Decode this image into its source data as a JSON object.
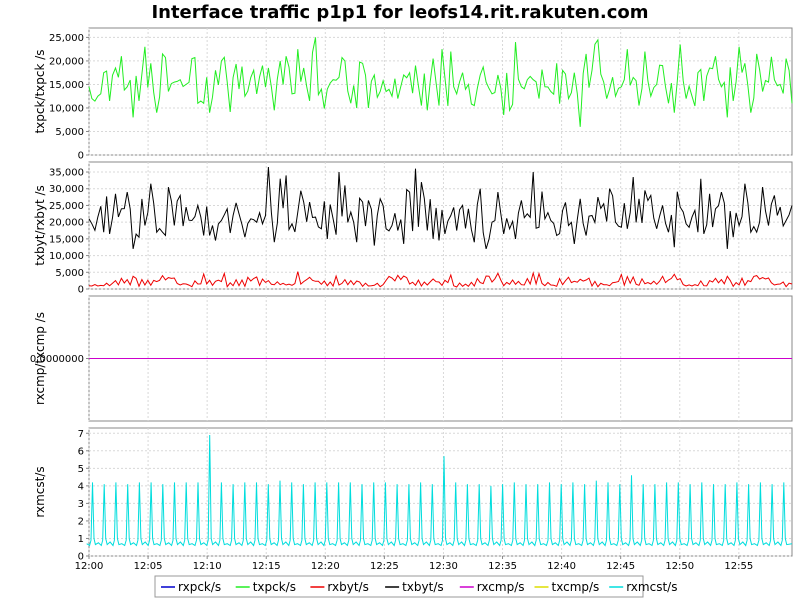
{
  "chart_data": {
    "type": "line",
    "title": "Interface traffic p1p1 for leofs14.rit.rakuten.com",
    "x_range": [
      "12:00",
      "12:59:30"
    ],
    "x_ticks": [
      "12:00",
      "12:05",
      "12:10",
      "12:15",
      "12:20",
      "12:25",
      "12:30",
      "12:35",
      "12:40",
      "12:45",
      "12:50",
      "12:55"
    ],
    "grid": true,
    "legend_position": "bottom",
    "legend": [
      {
        "name": "rxpck/s",
        "color": "#0000cc"
      },
      {
        "name": "txpck/s",
        "color": "#22ee22"
      },
      {
        "name": "rxbyt/s",
        "color": "#ee0000"
      },
      {
        "name": "txbyt/s",
        "color": "#000000"
      },
      {
        "name": "rxcmp/s",
        "color": "#cc00cc"
      },
      {
        "name": "txcmp/s",
        "color": "#dddd00"
      },
      {
        "name": "rxmcst/s",
        "color": "#00dddd"
      }
    ],
    "panels": [
      {
        "ylabel": "txpck/txpck /s",
        "ylim": [
          0,
          27000
        ],
        "yticks": [
          0,
          5000,
          10000,
          15000,
          20000,
          25000
        ],
        "ytick_labels": [
          "0",
          "5,000",
          "10,000",
          "15,000",
          "20,000",
          "25,000"
        ],
        "series": [
          {
            "name": "txpck/s",
            "color": "#22ee22",
            "approx_range": [
              4000,
              25500
            ],
            "typical": 14500,
            "values": [
              14500,
              9000,
              19500,
              12000,
              16000,
              13500,
              18000,
              11000,
              17500,
              12500,
              15500,
              20500,
              10500,
              16500,
              13000,
              19000,
              9500,
              17000,
              12000,
              22500,
              8500,
              18500,
              14000,
              16000,
              11500,
              20000,
              13500,
              21500,
              10000,
              17500,
              15000,
              12500,
              24500,
              9000,
              19000,
              14500,
              16500,
              10500,
              22000,
              13000,
              17500,
              11000,
              20000,
              15500,
              12500,
              18500,
              9500,
              21000,
              14000,
              16000,
              23000,
              11000,
              19500,
              13500,
              17000,
              6000,
              20500,
              12000,
              15500,
              18000,
              10500,
              22500,
              14000,
              16500,
              12500,
              19000,
              15000,
              9000,
              21000,
              13000,
              17500,
              11500,
              24000,
              14500,
              16000,
              12000,
              19500,
              10000,
              18000,
              15500,
              13500,
              21500,
              11000,
              17000,
              14000,
              20000,
              9500,
              16500,
              12500,
              22000,
              15000,
              18500,
              10500,
              23500,
              13000,
              17000,
              11500,
              25000,
              14500,
              8000,
              16500
            ]
          }
        ]
      },
      {
        "ylabel": "txbyt/rxbyt /s",
        "ylim": [
          0,
          38000
        ],
        "yticks": [
          0,
          5000,
          10000,
          15000,
          20000,
          25000,
          30000,
          35000
        ],
        "ytick_labels": [
          "0",
          "5,000",
          "10,000",
          "15,000",
          "20,000",
          "25,000",
          "30,000",
          "35,000"
        ],
        "series": [
          {
            "name": "txbyt/s",
            "color": "#000000",
            "approx_range": [
              5000,
              37000
            ],
            "typical": 20000,
            "values": [
              21000,
              17000,
              26000,
              19000,
              28000,
              18000,
              22000,
              16000,
              29000,
              20000,
              24000,
              15000,
              27000,
              21000,
              17500,
              25000,
              14000,
              30000,
              19500,
              23000,
              16500,
              28500,
              18000,
              22500,
              15500,
              31000,
              20500,
              17000,
              26500,
              13500,
              24500,
              19000,
              27500,
              16000,
              36000,
              18500,
              22000,
              14500,
              29500,
              20000,
              25000,
              17000,
              33000,
              12000,
              21500,
              26000,
              18000,
              24000,
              15000,
              35000,
              19000,
              23000,
              16000,
              30500,
              13000,
              27000,
              20500,
              17500,
              25500,
              14500,
              32000,
              18000,
              22500,
              16500,
              28000,
              19500,
              24000,
              12500,
              34000,
              20000,
              17000,
              26000,
              15000,
              29000,
              21000,
              18500,
              31500,
              14000,
              23500,
              19000,
              27000,
              16000,
              25000,
              13500,
              30000,
              20500,
              17500,
              33500,
              15500,
              22000,
              18000,
              36500,
              14000,
              24500,
              19500,
              29000,
              16500,
              21500,
              26500,
              12000,
              35000
            ]
          },
          {
            "name": "rxbyt/s",
            "color": "#ee0000",
            "approx_range": [
              300,
              6500
            ],
            "typical": 2000,
            "values": [
              1000,
              2200,
              800,
              3500,
              1200,
              2600,
              900,
              4500,
              1500,
              2000,
              700,
              3000,
              1100,
              2400,
              600,
              3800,
              1300,
              1900,
              900,
              5200,
              1000,
              2500,
              1400,
              3100,
              800,
              2800,
              1200,
              4000,
              900,
              2300,
              1500,
              3300,
              700,
              2600,
              1100,
              4300,
              1000,
              2100,
              1600,
              3600,
              800,
              2700,
              1300,
              3900,
              900,
              2200,
              1400,
              3200,
              1000,
              4800,
              1200,
              2500,
              800,
              3400,
              1100,
              2900,
              700,
              4100,
              1300,
              2300,
              900,
              3700,
              1000,
              2600,
              1500,
              3000,
              800,
              4400,
              1200,
              2100,
              1000,
              3500,
              1400,
              2800,
              900,
              4600,
              1100,
              2400,
              1300,
              3300,
              700,
              2700,
              1500,
              3900,
              1000,
              2200,
              1200,
              3600,
              800,
              4200,
              1400,
              2500,
              900,
              3100,
              1100,
              4700,
              1000,
              2300,
              1300,
              3800,
              1200
            ]
          }
        ]
      },
      {
        "ylabel": "rxcmp/txcmp /s",
        "ylim": [
          -1,
          1
        ],
        "yticks": [
          0
        ],
        "ytick_labels": [
          "0.0000000"
        ],
        "series": [
          {
            "name": "rxcmp/s",
            "color": "#cc00cc",
            "values": [
              0,
              0
            ]
          }
        ]
      },
      {
        "ylabel": "rxmcst/s",
        "ylim": [
          0,
          7.3
        ],
        "yticks": [
          0,
          1,
          2,
          3,
          4,
          5,
          6,
          7
        ],
        "ytick_labels": [
          "0",
          "1",
          "2",
          "3",
          "4",
          "5",
          "6",
          "7"
        ],
        "series": [
          {
            "name": "rxmcst/s",
            "color": "#00dddd",
            "pattern": "periodic spikes every ~1 min to ~4.2, baseline ~0.7; peaks 6.9 near 12:10 and 5.7 near 12:30",
            "spike_peaks": [
              4.2,
              4.1,
              4.2,
              4.1,
              4.2,
              4.2,
              4.1,
              4.2,
              4.2,
              4.2,
              6.9,
              4.2,
              4.1,
              4.2,
              4.2,
              4.1,
              4.3,
              4.2,
              4.1,
              4.2,
              4.2,
              4.2,
              4.2,
              4.1,
              4.2,
              4.2,
              4.1,
              4.1,
              4.2,
              4.1,
              5.7,
              4.2,
              4.1,
              4.1,
              4.0,
              4.1,
              4.2,
              4.1,
              4.1,
              4.2,
              4.1,
              4.2,
              4.1,
              4.3,
              4.2,
              4.1,
              4.6,
              4.1,
              4.1,
              4.2,
              4.2,
              4.1,
              4.2,
              4.1,
              4.1,
              4.2,
              4.1,
              4.2,
              4.1,
              4.2
            ],
            "baseline": 0.7
          }
        ]
      }
    ]
  }
}
